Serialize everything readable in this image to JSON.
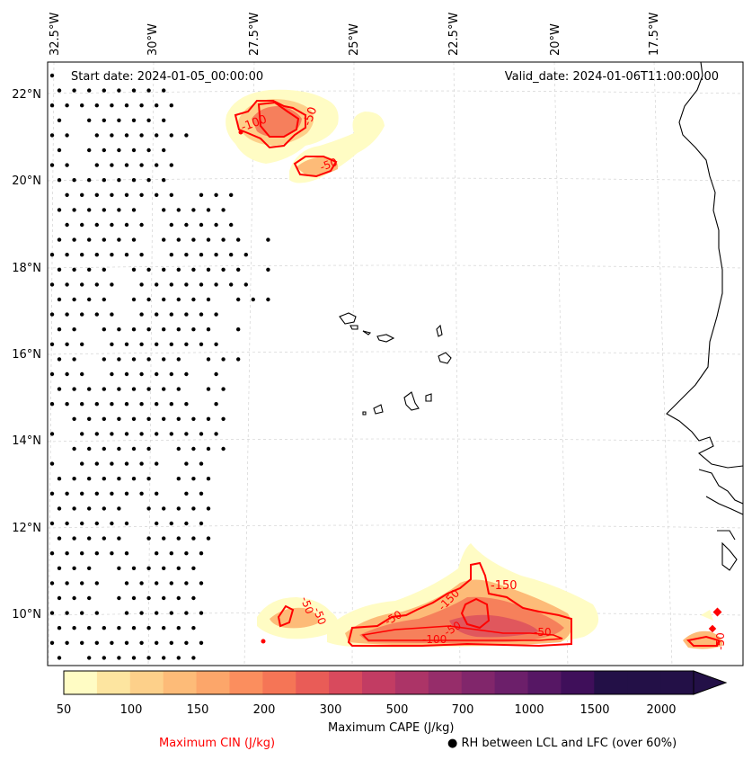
{
  "map": {
    "start_date": "Start date: 2024-01-05_00:00:00",
    "valid_date": "Valid_date: 2024-01-06T11:00:00.00",
    "lon_labels": [
      "32.5°W",
      "30°W",
      "27.5°W",
      "25°W",
      "22.5°W",
      "20°W",
      "17.5°W"
    ],
    "lat_labels": [
      "22°N",
      "20°N",
      "18°N",
      "16°N",
      "14°N",
      "12°N",
      "10°N"
    ],
    "cin_contour_labels": [
      "-100",
      "-50",
      "-50",
      "-50",
      "-50",
      "-150",
      "-150",
      "-50",
      "-100",
      "-50",
      "-50",
      "-50"
    ]
  },
  "colorbar": {
    "ticks": [
      "50",
      "100",
      "150",
      "200",
      "300",
      "500",
      "700",
      "1000",
      "1500",
      "2000"
    ],
    "colors": [
      "#fffcc4",
      "#fde5a0",
      "#fdd08a",
      "#fdbb78",
      "#fca66a",
      "#fb8e5e",
      "#f57556",
      "#e95c57",
      "#d84a5d",
      "#c23c63",
      "#ac3467",
      "#962d6a",
      "#81266b",
      "#6c1f6a",
      "#561764",
      "#3f0f5a",
      "#231047"
    ],
    "label": "Maximum CAPE (J/kg)"
  },
  "legend": {
    "cin_label": "Maximum CIN (J/kg)",
    "cin_color": "#ff0000",
    "rh_label": "RH between LCL and LFC (over 60%)",
    "rh_marker": "●"
  }
}
